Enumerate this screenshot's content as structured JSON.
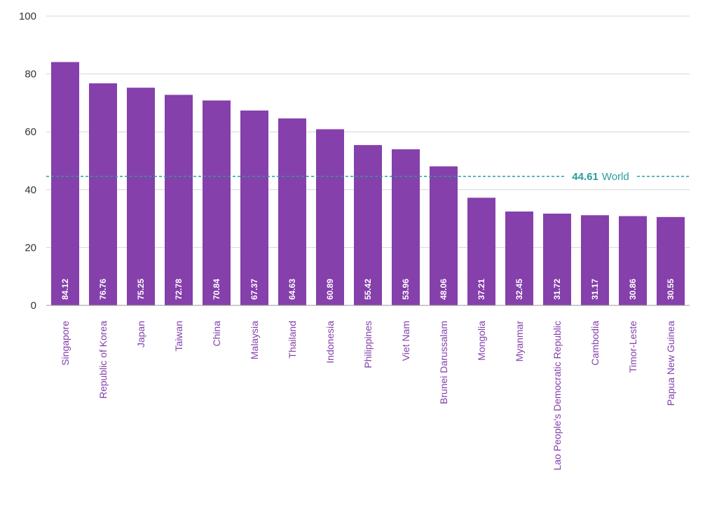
{
  "chart_data": {
    "type": "bar",
    "categories": [
      "Singapore",
      "Republic of Korea",
      "Japan",
      "Taiwan",
      "China",
      "Malaysia",
      "Thailand",
      "Indonesia",
      "Philippines",
      "Viet Nam",
      "Brunei Darussalam",
      "Mongolia",
      "Myanmar",
      "Lao People's Democratic Republic",
      "Cambodia",
      "Timor-Leste",
      "Papua New Guinea"
    ],
    "values": [
      84.12,
      76.76,
      75.25,
      72.78,
      70.84,
      67.37,
      64.63,
      60.89,
      55.42,
      53.96,
      48.06,
      37.21,
      32.45,
      31.72,
      31.17,
      30.86,
      30.55
    ],
    "value_labels": [
      "84.12",
      "76.76",
      "75.25",
      "72.78",
      "70.84",
      "67.37",
      "64.63",
      "60.89",
      "55.42",
      "53.96",
      "48.06",
      "37.21",
      "32.45",
      "31.72",
      "31.17",
      "30.86",
      "30.55"
    ],
    "ylim": [
      0,
      100
    ],
    "yticks": [
      0,
      20,
      40,
      60,
      80,
      100
    ],
    "ytick_labels": [
      "0",
      "20",
      "40",
      "60",
      "80",
      "100"
    ],
    "reference_line": {
      "value": 44.61,
      "value_label": "44.61",
      "label": "World"
    },
    "grid": true,
    "colors": {
      "bar": "#8540ab",
      "reference": "#2a9d9c",
      "category_label": "#8540ab"
    }
  }
}
